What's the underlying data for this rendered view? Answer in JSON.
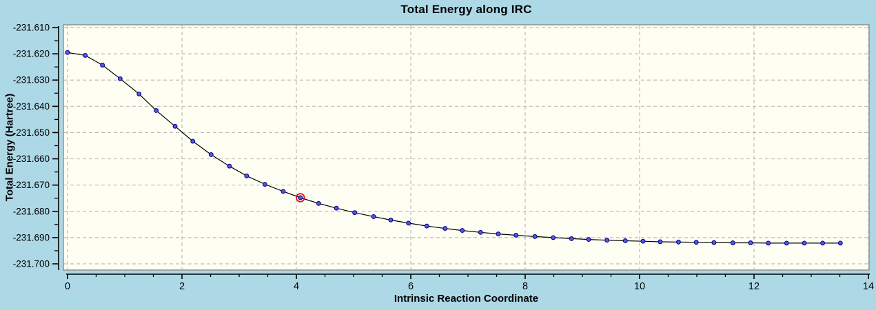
{
  "title": "Total Energy along IRC",
  "colors": {
    "page_background": "#ADD8E6",
    "plot_background": "#FFFEF2",
    "plot_border": "#8C8C8C",
    "gridline": "#BBBBBB",
    "axis": "#000000",
    "line": "#000000",
    "marker_fill": "#5A5AD2",
    "marker_edge": "#0000A0",
    "highlight_ring": "#E01010",
    "text": "#000000"
  },
  "chart_data": {
    "type": "line",
    "title": "Total Energy along IRC",
    "xlabel": "Intrinsic Reaction Coordinate",
    "ylabel": "Total Energy (Hartree)",
    "xlim": [
      0,
      14
    ],
    "ylim": [
      -231.7,
      -231.61
    ],
    "grid": "dashed gridlines at every major tick, both axes",
    "legend": "none",
    "x_ticks": [
      0,
      2,
      4,
      6,
      8,
      10,
      12,
      14
    ],
    "x_tick_labels": [
      "0",
      "2",
      "4",
      "6",
      "8",
      "10",
      "12",
      "14"
    ],
    "x_minor_tick_step": 0.5,
    "y_ticks": [
      -231.61,
      -231.62,
      -231.63,
      -231.64,
      -231.65,
      -231.66,
      -231.67,
      -231.68,
      -231.69,
      -231.7
    ],
    "y_tick_labels": [
      "-231.610",
      "-231.620",
      "-231.630",
      "-231.640",
      "-231.650",
      "-231.660",
      "-231.670",
      "-231.680",
      "-231.690",
      "-231.700"
    ],
    "y_minor_tick_step": 0.005,
    "series": [
      {
        "name": "Total Energy",
        "marker": "circle",
        "x": [
          0.0,
          0.31,
          0.61,
          0.92,
          1.25,
          1.55,
          1.88,
          2.19,
          2.51,
          2.83,
          3.13,
          3.45,
          3.77,
          4.07,
          4.39,
          4.7,
          5.02,
          5.35,
          5.65,
          5.96,
          6.28,
          6.6,
          6.9,
          7.22,
          7.53,
          7.84,
          8.17,
          8.49,
          8.81,
          9.11,
          9.43,
          9.75,
          10.06,
          10.36,
          10.68,
          10.99,
          11.3,
          11.63,
          11.94,
          12.25,
          12.57,
          12.88,
          13.2,
          13.51
        ],
        "y": [
          -231.6195,
          -231.6206,
          -231.6243,
          -231.6295,
          -231.6353,
          -231.6416,
          -231.6476,
          -231.6533,
          -231.6584,
          -231.6628,
          -231.6665,
          -231.6697,
          -231.6724,
          -231.6748,
          -231.677,
          -231.6788,
          -231.6805,
          -231.682,
          -231.6833,
          -231.6845,
          -231.6856,
          -231.6865,
          -231.6873,
          -231.688,
          -231.6886,
          -231.6891,
          -231.6896,
          -231.69,
          -231.6904,
          -231.6907,
          -231.691,
          -231.6912,
          -231.6914,
          -231.6916,
          -231.6917,
          -231.6918,
          -231.6919,
          -231.692,
          -231.692,
          -231.6921,
          -231.6921,
          -231.6921,
          -231.6921,
          -231.6921
        ]
      }
    ],
    "highlighted_point": {
      "index": 13,
      "x": 4.07,
      "y": -231.6748
    }
  }
}
